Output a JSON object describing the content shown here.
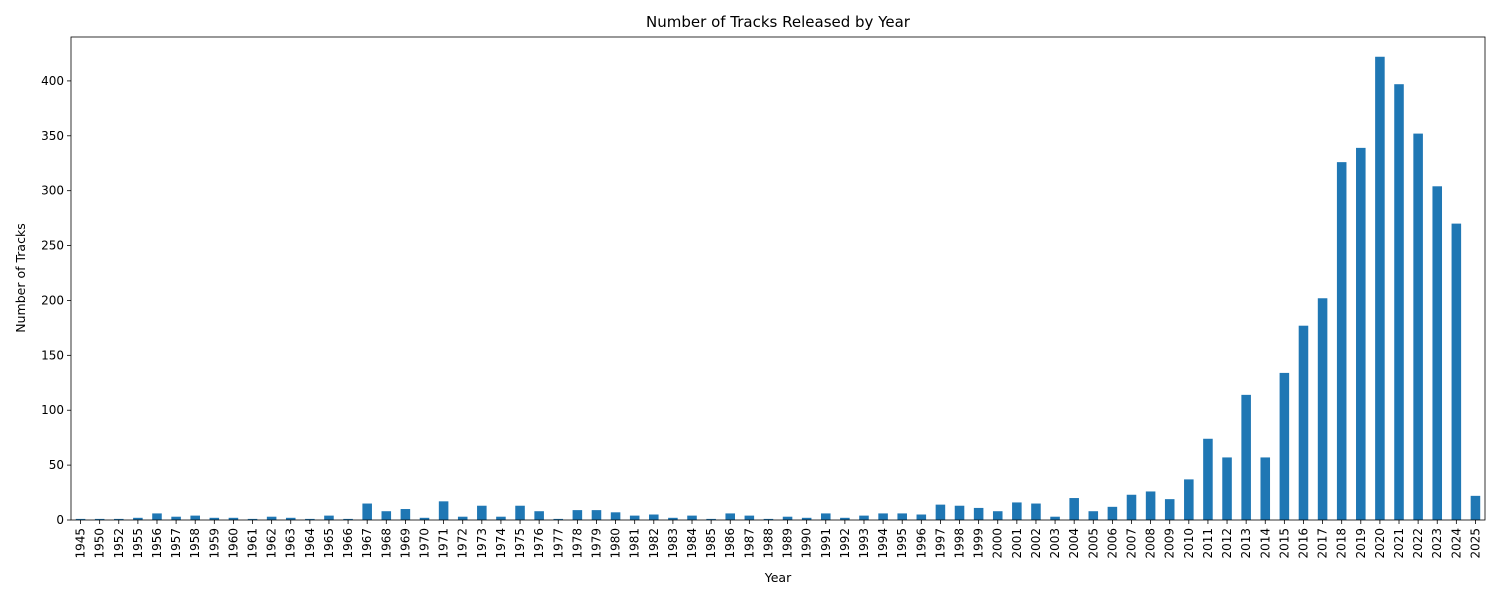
{
  "chart_data": {
    "type": "bar",
    "title": "Number of Tracks Released by Year",
    "xlabel": "Year",
    "ylabel": "Number of Tracks",
    "color": "#1f77b4",
    "ylim": [
      0,
      440
    ],
    "yticks": [
      0,
      50,
      100,
      150,
      200,
      250,
      300,
      350,
      400
    ],
    "grid": false,
    "categories": [
      "1945",
      "1950",
      "1952",
      "1955",
      "1956",
      "1957",
      "1958",
      "1959",
      "1960",
      "1961",
      "1962",
      "1963",
      "1964",
      "1965",
      "1966",
      "1967",
      "1968",
      "1969",
      "1970",
      "1971",
      "1972",
      "1973",
      "1974",
      "1975",
      "1976",
      "1977",
      "1978",
      "1979",
      "1980",
      "1981",
      "1982",
      "1983",
      "1984",
      "1985",
      "1986",
      "1987",
      "1988",
      "1989",
      "1990",
      "1991",
      "1992",
      "1993",
      "1994",
      "1995",
      "1996",
      "1997",
      "1998",
      "1999",
      "2000",
      "2001",
      "2002",
      "2003",
      "2004",
      "2005",
      "2006",
      "2007",
      "2008",
      "2009",
      "2010",
      "2011",
      "2012",
      "2013",
      "2014",
      "2015",
      "2016",
      "2017",
      "2018",
      "2019",
      "2020",
      "2021",
      "2022",
      "2023",
      "2024",
      "2025"
    ],
    "values": [
      1,
      1,
      1,
      2,
      6,
      3,
      4,
      2,
      2,
      1,
      3,
      2,
      1,
      4,
      1,
      15,
      8,
      10,
      2,
      17,
      3,
      13,
      3,
      13,
      8,
      1,
      9,
      9,
      7,
      4,
      5,
      2,
      4,
      1,
      6,
      4,
      1,
      3,
      2,
      6,
      2,
      4,
      6,
      6,
      5,
      14,
      13,
      11,
      8,
      16,
      15,
      3,
      20,
      8,
      12,
      23,
      26,
      19,
      37,
      74,
      57,
      114,
      57,
      134,
      177,
      202,
      326,
      339,
      422,
      397,
      352,
      304,
      270,
      22
    ]
  }
}
